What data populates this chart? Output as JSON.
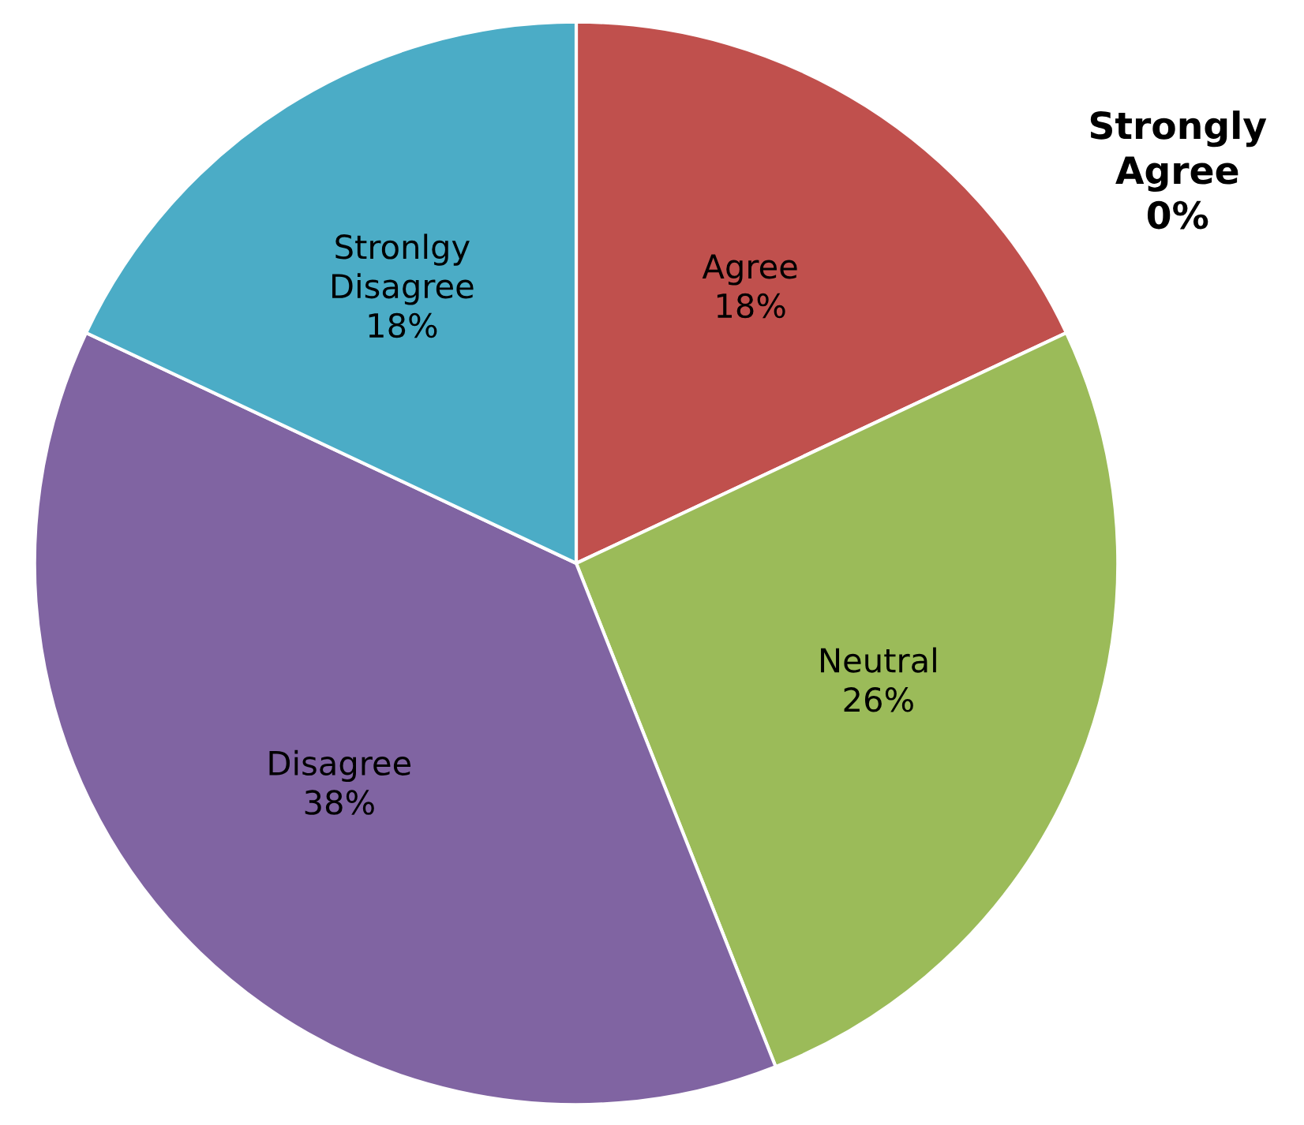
{
  "chart_data": {
    "type": "pie",
    "categories": [
      "Strongly Agree",
      "Agree",
      "Neutral",
      "Disagree",
      "Stronlgy Disagree"
    ],
    "values": [
      0,
      18,
      26,
      38,
      18
    ],
    "colors": [
      "#4f81bd",
      "#c0504d",
      "#9bbb59",
      "#8064a2",
      "#4bacc6"
    ],
    "value_labels": [
      "0%",
      "18%",
      "26%",
      "38%",
      "18%"
    ]
  }
}
